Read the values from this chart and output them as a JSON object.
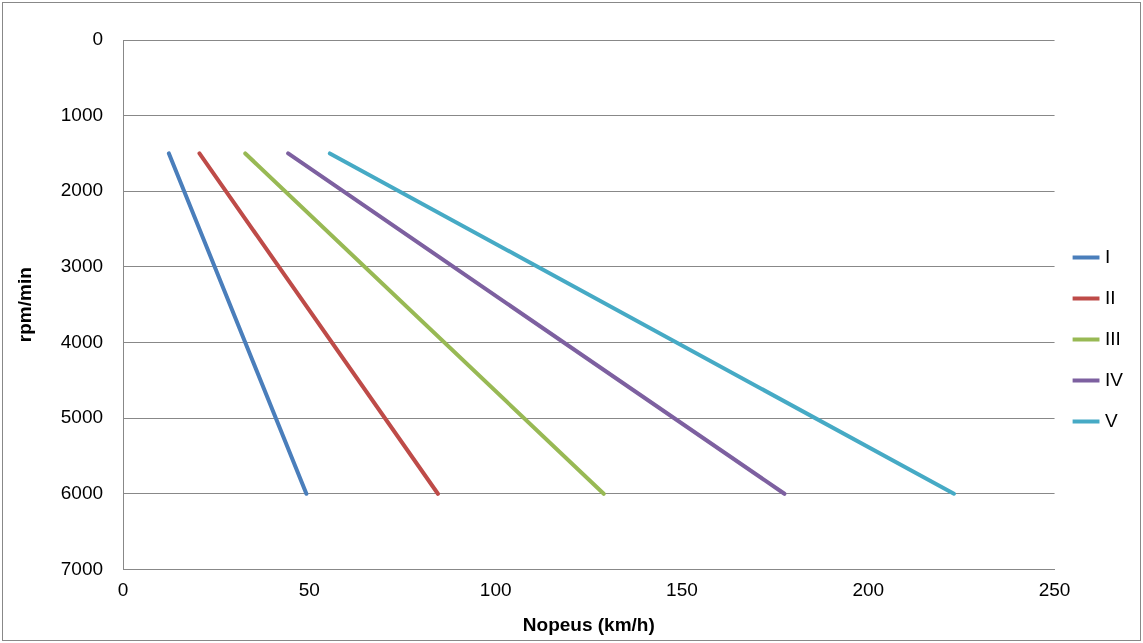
{
  "chart_data": {
    "type": "line",
    "xlabel": "Nopeus (km/h)",
    "ylabel": "rpm/min",
    "xlim": [
      0,
      250
    ],
    "xticks": [
      0,
      50,
      100,
      150,
      200,
      250
    ],
    "ylim": [
      7000,
      0
    ],
    "yticks": [
      0,
      1000,
      2000,
      3000,
      4000,
      5000,
      6000,
      7000
    ],
    "grid": "y",
    "legend": "right",
    "marker": "none",
    "line_style": "solid",
    "series": [
      {
        "name": "I",
        "color": "#4a7ebb",
        "x": [
          12.3,
          49.2
        ],
        "values": [
          1500,
          6000
        ]
      },
      {
        "name": "II",
        "color": "#be4b48",
        "x": [
          20.5,
          84.5
        ],
        "values": [
          1500,
          6000
        ]
      },
      {
        "name": "III",
        "color": "#98b954",
        "x": [
          32.8,
          129
        ],
        "values": [
          1500,
          6000
        ]
      },
      {
        "name": "IV",
        "color": "#7d60a0",
        "x": [
          44.3,
          177.5
        ],
        "values": [
          1500,
          6000
        ]
      },
      {
        "name": "V",
        "color": "#46aac5",
        "x": [
          55.5,
          223
        ],
        "values": [
          1500,
          6000
        ]
      }
    ]
  }
}
